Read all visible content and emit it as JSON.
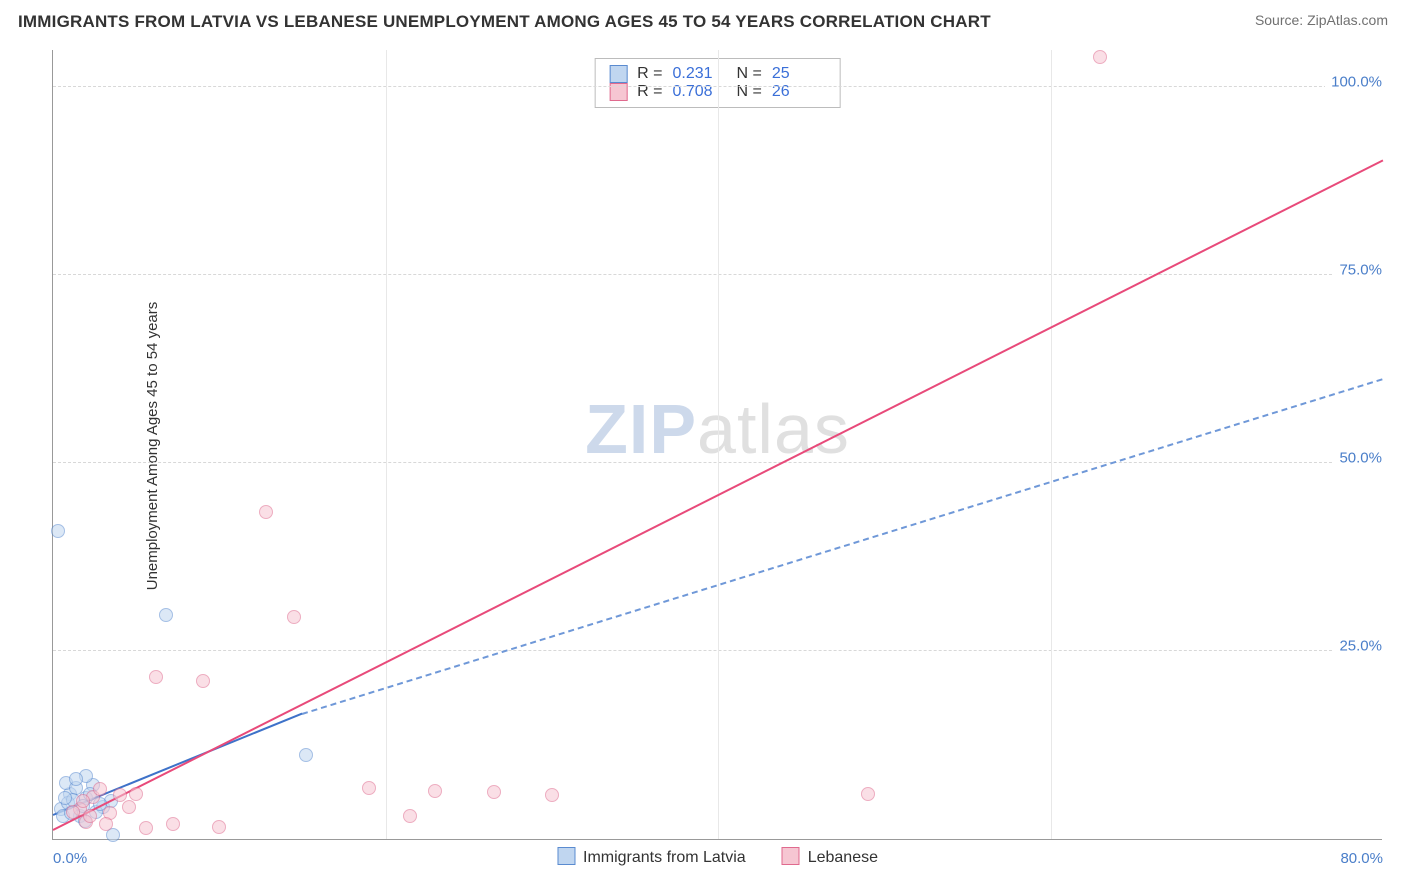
{
  "header": {
    "title": "IMMIGRANTS FROM LATVIA VS LEBANESE UNEMPLOYMENT AMONG AGES 45 TO 54 YEARS CORRELATION CHART",
    "source": "Source: ZipAtlas.com"
  },
  "watermark": {
    "part1": "ZIP",
    "part2": "atlas"
  },
  "chart": {
    "type": "scatter",
    "ylabel": "Unemployment Among Ages 45 to 54 years",
    "xlim": [
      0,
      80
    ],
    "ylim": [
      0,
      105
    ],
    "xticks": [
      {
        "v": 0,
        "label": "0.0%",
        "cls": "first"
      },
      {
        "v": 80,
        "label": "80.0%",
        "cls": "last"
      }
    ],
    "xgrid": [
      20,
      40,
      60
    ],
    "yticks": [
      {
        "v": 25,
        "label": "25.0%"
      },
      {
        "v": 50,
        "label": "50.0%"
      },
      {
        "v": 75,
        "label": "75.0%"
      },
      {
        "v": 100,
        "label": "100.0%"
      }
    ],
    "plot_bg": "#ffffff",
    "grid_color": "#d8d8d8",
    "point_radius": 7,
    "series": [
      {
        "key": "latvia",
        "label": "Immigrants from Latvia",
        "fill": "#c0d6f0",
        "stroke": "#5a8bd0",
        "fill_opacity": 0.55,
        "R": "0.231",
        "N": "25",
        "trend": {
          "style": "solid",
          "color": "#3e72c9",
          "x1": 0,
          "y1": 3.0,
          "x2": 15,
          "y2": 16.5,
          "dash_style": "dashed",
          "dash_color": "#6f98d8",
          "dash_x2": 80,
          "dash_y2": 61.0
        },
        "points": [
          {
            "x": 0.3,
            "y": 41.0
          },
          {
            "x": 6.8,
            "y": 29.8
          },
          {
            "x": 15.2,
            "y": 11.2
          },
          {
            "x": 1.0,
            "y": 6.0
          },
          {
            "x": 0.8,
            "y": 7.5
          },
          {
            "x": 1.4,
            "y": 6.8
          },
          {
            "x": 2.0,
            "y": 5.5
          },
          {
            "x": 2.4,
            "y": 7.2
          },
          {
            "x": 0.5,
            "y": 4.0
          },
          {
            "x": 3.0,
            "y": 4.2
          },
          {
            "x": 1.6,
            "y": 3.0
          },
          {
            "x": 2.0,
            "y": 8.4
          },
          {
            "x": 0.9,
            "y": 4.8
          },
          {
            "x": 3.5,
            "y": 5.0
          },
          {
            "x": 1.2,
            "y": 5.2
          },
          {
            "x": 0.6,
            "y": 3.1
          },
          {
            "x": 2.6,
            "y": 3.6
          },
          {
            "x": 3.6,
            "y": 0.5
          },
          {
            "x": 1.8,
            "y": 4.4
          },
          {
            "x": 2.2,
            "y": 6.0
          },
          {
            "x": 1.4,
            "y": 8.0
          },
          {
            "x": 0.7,
            "y": 5.4
          },
          {
            "x": 1.1,
            "y": 3.4
          },
          {
            "x": 2.8,
            "y": 4.6
          },
          {
            "x": 1.9,
            "y": 2.4
          }
        ]
      },
      {
        "key": "lebanese",
        "label": "Lebanese",
        "fill": "#f6c6d2",
        "stroke": "#e06a8e",
        "fill_opacity": 0.55,
        "R": "0.708",
        "N": "26",
        "trend": {
          "style": "solid",
          "color": "#e84a7a",
          "x1": 0,
          "y1": 1.0,
          "x2": 80,
          "y2": 90.0
        },
        "points": [
          {
            "x": 63.0,
            "y": 104.0
          },
          {
            "x": 12.8,
            "y": 43.5
          },
          {
            "x": 14.5,
            "y": 29.5
          },
          {
            "x": 6.2,
            "y": 21.5
          },
          {
            "x": 9.0,
            "y": 21.0
          },
          {
            "x": 49.0,
            "y": 6.0
          },
          {
            "x": 19.0,
            "y": 6.8
          },
          {
            "x": 21.5,
            "y": 3.0
          },
          {
            "x": 23.0,
            "y": 6.4
          },
          {
            "x": 26.5,
            "y": 6.2
          },
          {
            "x": 30.0,
            "y": 5.8
          },
          {
            "x": 7.2,
            "y": 2.0
          },
          {
            "x": 10.0,
            "y": 1.6
          },
          {
            "x": 2.4,
            "y": 5.6
          },
          {
            "x": 1.6,
            "y": 4.0
          },
          {
            "x": 4.0,
            "y": 5.8
          },
          {
            "x": 3.4,
            "y": 3.4
          },
          {
            "x": 5.0,
            "y": 6.0
          },
          {
            "x": 5.6,
            "y": 1.4
          },
          {
            "x": 2.8,
            "y": 6.6
          },
          {
            "x": 3.2,
            "y": 2.0
          },
          {
            "x": 1.2,
            "y": 3.6
          },
          {
            "x": 2.0,
            "y": 2.2
          },
          {
            "x": 4.6,
            "y": 4.2
          },
          {
            "x": 1.8,
            "y": 5.0
          },
          {
            "x": 2.2,
            "y": 3.0
          }
        ]
      }
    ],
    "legend_top": {
      "r_label": "R =",
      "n_label": "N ="
    }
  }
}
